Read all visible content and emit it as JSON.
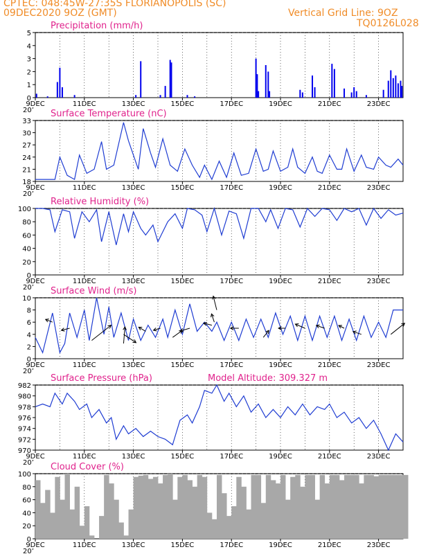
{
  "header": {
    "line1": "CPTEC:   048:45W-27:35S   FLORIANOPOLIS (SC)",
    "line2_left": "09DEC2020 9OZ (GMT)",
    "line2_right": "Vertical Grid Line: 9OZ",
    "line3_right": "TQ0126L028"
  },
  "x_tick_labels": [
    "9DEC",
    "11DEC",
    "13DEC",
    "15DEC",
    "17DEC",
    "19DEC",
    "21DEC",
    "23DEC"
  ],
  "x_stub_label": "20’",
  "colors": {
    "line": "#1e3cd2",
    "bar": "#0000ee",
    "title": "#e0228c",
    "header": "#f08c28",
    "cloud": "#a8a8a8",
    "grid": "#000000"
  },
  "chart_data": [
    {
      "type": "bar",
      "id": "precip",
      "title": "Precipitation (mm/h)",
      "ylim": [
        0,
        5
      ],
      "yticks": [
        0,
        1,
        2,
        3,
        4,
        5
      ],
      "x": [
        0.05,
        0.5,
        0.9,
        1.0,
        1.1,
        1.6,
        4.1,
        4.3,
        5.1,
        5.3,
        5.5,
        5.55,
        6.2,
        6.5,
        9.0,
        9.05,
        9.1,
        9.4,
        9.5,
        9.55,
        10.8,
        10.9,
        11.3,
        11.4,
        12.1,
        12.2,
        12.6,
        12.9,
        13.0,
        13.1,
        13.5,
        14.2,
        14.4,
        14.5,
        14.6,
        14.7,
        14.8,
        14.9,
        14.95
      ],
      "values": [
        0.3,
        0.1,
        1.2,
        2.3,
        0.8,
        0.2,
        0.2,
        2.8,
        0.2,
        0.9,
        2.9,
        2.7,
        0.2,
        0.1,
        3.0,
        1.8,
        0.5,
        2.5,
        2.0,
        0.5,
        0.6,
        0.4,
        1.7,
        0.8,
        2.6,
        2.2,
        0.7,
        0.4,
        0.8,
        0.5,
        0.2,
        0.6,
        1.3,
        2.1,
        1.5,
        1.7,
        1.1,
        1.3,
        0.9
      ]
    },
    {
      "type": "line",
      "id": "temp",
      "title": "Surface Temperature (nC)",
      "ylim": [
        18,
        33
      ],
      "yticks": [
        18,
        21,
        24,
        27,
        30,
        33
      ],
      "x": [
        0.0,
        0.3,
        0.8,
        1.0,
        1.3,
        1.6,
        1.8,
        2.1,
        2.4,
        2.7,
        2.9,
        3.2,
        3.6,
        3.8,
        4.2,
        4.4,
        4.7,
        4.9,
        5.2,
        5.5,
        5.8,
        6.1,
        6.4,
        6.7,
        6.9,
        7.2,
        7.5,
        7.8,
        8.1,
        8.4,
        8.7,
        9.0,
        9.3,
        9.5,
        9.7,
        10.0,
        10.3,
        10.5,
        10.7,
        11.0,
        11.3,
        11.5,
        11.7,
        12.0,
        12.3,
        12.5,
        12.7,
        13.0,
        13.3,
        13.5,
        13.8,
        14.0,
        14.3,
        14.5,
        14.8,
        15.0
      ],
      "values": [
        18.5,
        18.5,
        18.5,
        24.0,
        19.5,
        18.5,
        24.5,
        20.0,
        21.0,
        27.8,
        21.0,
        22.0,
        32.5,
        28.0,
        21.0,
        31.0,
        25.0,
        21.5,
        28.5,
        22.0,
        20.5,
        26.0,
        22.0,
        19.0,
        22.0,
        18.5,
        23.0,
        19.0,
        25.0,
        19.5,
        20.0,
        26.0,
        20.5,
        21.0,
        25.5,
        20.5,
        21.5,
        26.0,
        21.5,
        20.0,
        24.0,
        20.5,
        20.0,
        24.5,
        21.0,
        21.0,
        26.0,
        20.5,
        24.5,
        21.5,
        21.0,
        24.0,
        22.0,
        21.5,
        23.5,
        22.0
      ]
    },
    {
      "type": "line",
      "id": "rh",
      "title": "Relative Humidity (%)",
      "ylim": [
        0,
        100
      ],
      "yticks": [
        0,
        20,
        40,
        60,
        80,
        100
      ],
      "x": [
        0.0,
        0.3,
        0.6,
        0.8,
        1.1,
        1.4,
        1.6,
        1.9,
        2.2,
        2.5,
        2.7,
        3.0,
        3.3,
        3.6,
        3.8,
        4.0,
        4.3,
        4.5,
        4.8,
        5.0,
        5.4,
        5.7,
        6.0,
        6.2,
        6.5,
        6.8,
        7.0,
        7.3,
        7.6,
        7.9,
        8.2,
        8.5,
        8.8,
        9.1,
        9.4,
        9.6,
        9.9,
        10.2,
        10.5,
        10.8,
        11.1,
        11.4,
        11.7,
        12.0,
        12.3,
        12.6,
        12.9,
        13.2,
        13.5,
        13.8,
        14.1,
        14.4,
        14.7,
        15.0
      ],
      "values": [
        100,
        100,
        98,
        65,
        98,
        95,
        55,
        95,
        80,
        98,
        50,
        95,
        45,
        92,
        65,
        95,
        70,
        60,
        75,
        50,
        80,
        92,
        70,
        100,
        98,
        90,
        65,
        100,
        60,
        96,
        92,
        55,
        100,
        100,
        80,
        98,
        70,
        100,
        98,
        72,
        100,
        88,
        100,
        98,
        82,
        100,
        95,
        100,
        75,
        100,
        85,
        98,
        90,
        93
      ]
    },
    {
      "type": "line",
      "id": "wind",
      "title": "Surface Wind (m/s)",
      "ylim": [
        0,
        10
      ],
      "yticks": [
        0,
        2,
        4,
        6,
        8,
        10
      ],
      "x": [
        0.0,
        0.3,
        0.7,
        1.0,
        1.2,
        1.4,
        1.7,
        2.0,
        2.2,
        2.5,
        2.8,
        3.0,
        3.2,
        3.5,
        3.8,
        4.0,
        4.3,
        4.6,
        4.9,
        5.2,
        5.4,
        5.7,
        6.0,
        6.3,
        6.6,
        6.9,
        7.2,
        7.4,
        7.7,
        8.0,
        8.3,
        8.6,
        8.9,
        9.2,
        9.5,
        9.8,
        10.1,
        10.4,
        10.7,
        11.0,
        11.3,
        11.6,
        11.9,
        12.2,
        12.5,
        12.8,
        13.1,
        13.4,
        13.7,
        14.0,
        14.3,
        14.6,
        15.0
      ],
      "values": [
        3.5,
        1.0,
        7.5,
        1.0,
        2.5,
        7.5,
        3.5,
        8.0,
        3.0,
        10.0,
        4.0,
        8.5,
        3.5,
        7.5,
        3.0,
        6.5,
        3.0,
        5.5,
        3.5,
        6.5,
        3.5,
        8.0,
        4.0,
        9.0,
        4.5,
        6.0,
        4.5,
        6.0,
        3.0,
        6.0,
        3.0,
        6.5,
        3.5,
        6.5,
        3.5,
        7.5,
        4.0,
        7.0,
        3.0,
        7.0,
        3.0,
        7.0,
        3.5,
        7.0,
        3.0,
        6.5,
        3.0,
        7.0,
        3.5,
        6.0,
        3.5,
        8.0,
        8.0
      ]
    },
    {
      "type": "line",
      "id": "press",
      "title": "Surface Pressure (hPa)",
      "annotation": "Model Altitude: 309.327 m",
      "ylim": [
        970,
        982
      ],
      "yticks": [
        970,
        972,
        974,
        976,
        978,
        980,
        982
      ],
      "x": [
        0.0,
        0.3,
        0.6,
        0.8,
        1.1,
        1.3,
        1.6,
        1.8,
        2.1,
        2.3,
        2.6,
        2.9,
        3.1,
        3.3,
        3.6,
        3.8,
        4.1,
        4.4,
        4.7,
        5.0,
        5.3,
        5.6,
        5.9,
        6.2,
        6.4,
        6.7,
        6.9,
        7.2,
        7.4,
        7.7,
        7.9,
        8.2,
        8.5,
        8.8,
        9.1,
        9.4,
        9.7,
        10.0,
        10.3,
        10.6,
        10.9,
        11.2,
        11.5,
        11.8,
        12.0,
        12.3,
        12.6,
        12.9,
        13.2,
        13.5,
        13.8,
        14.1,
        14.4,
        14.7,
        15.0
      ],
      "values": [
        978.0,
        978.5,
        978.0,
        980.5,
        978.5,
        980.5,
        979.0,
        977.5,
        978.5,
        976.0,
        977.5,
        975.0,
        976.0,
        972.0,
        974.5,
        973.0,
        974.0,
        972.5,
        973.5,
        972.5,
        972.0,
        971.0,
        975.5,
        976.5,
        975.0,
        978.0,
        981.0,
        980.5,
        982.0,
        979.0,
        980.5,
        978.0,
        980.0,
        977.0,
        978.5,
        976.0,
        977.5,
        976.0,
        978.0,
        976.5,
        978.5,
        976.5,
        978.0,
        977.5,
        978.5,
        976.0,
        977.0,
        975.0,
        976.0,
        974.0,
        975.5,
        973.0,
        970.0,
        973.0,
        971.5
      ]
    },
    {
      "type": "area",
      "id": "cloud",
      "title": "Cloud Cover (%)",
      "ylim": [
        0,
        100
      ],
      "yticks": [
        0,
        20,
        40,
        60,
        80,
        100
      ],
      "x": [
        0.0,
        0.2,
        0.4,
        0.6,
        0.8,
        1.0,
        1.2,
        1.4,
        1.6,
        1.8,
        2.0,
        2.2,
        2.4,
        2.6,
        2.8,
        3.0,
        3.2,
        3.4,
        3.6,
        3.8,
        4.0,
        4.2,
        4.4,
        4.6,
        4.8,
        5.0,
        5.2,
        5.4,
        5.6,
        5.8,
        6.0,
        6.2,
        6.4,
        6.6,
        6.8,
        7.0,
        7.2,
        7.4,
        7.6,
        7.8,
        8.0,
        8.2,
        8.4,
        8.6,
        8.8,
        9.0,
        9.2,
        9.4,
        9.6,
        9.8,
        10.0,
        10.2,
        10.4,
        10.6,
        10.8,
        11.0,
        11.2,
        11.4,
        11.6,
        11.8,
        12.0,
        12.2,
        12.4,
        12.6,
        12.8,
        13.0,
        13.2,
        13.4,
        13.6,
        13.8,
        14.0,
        14.2,
        14.4,
        14.6,
        14.8,
        15.0
      ],
      "values": [
        90,
        55,
        75,
        40,
        95,
        60,
        100,
        45,
        80,
        20,
        50,
        5,
        0,
        35,
        98,
        85,
        60,
        25,
        5,
        45,
        95,
        97,
        98,
        92,
        95,
        85,
        98,
        100,
        60,
        95,
        98,
        90,
        80,
        98,
        95,
        40,
        30,
        98,
        70,
        35,
        50,
        95,
        80,
        45,
        98,
        98,
        55,
        98,
        90,
        85,
        98,
        60,
        95,
        98,
        80,
        98,
        98,
        60,
        98,
        85,
        98,
        98,
        90,
        98,
        98,
        98,
        85,
        98,
        98,
        96,
        98,
        98,
        98,
        98,
        98,
        98
      ]
    }
  ],
  "wind_arrows": [
    {
      "x": 0.7,
      "y": 6.0,
      "dx": -10,
      "dy": -4
    },
    {
      "x": 1.4,
      "y": 5.0,
      "dx": -12,
      "dy": 3
    },
    {
      "x": 2.3,
      "y": 3.0,
      "dx": 28,
      "dy": -22
    },
    {
      "x": 3.6,
      "y": 2.5,
      "dx": 2,
      "dy": -24
    },
    {
      "x": 3.6,
      "y": 4.0,
      "dx": 18,
      "dy": 12
    },
    {
      "x": 4.5,
      "y": 4.5,
      "dx": -10,
      "dy": -6
    },
    {
      "x": 5.1,
      "y": 5.0,
      "dx": -10,
      "dy": 3
    },
    {
      "x": 5.6,
      "y": 3.5,
      "dx": 14,
      "dy": -10
    },
    {
      "x": 6.3,
      "y": 5.0,
      "dx": -14,
      "dy": 4
    },
    {
      "x": 7.2,
      "y": 5.5,
      "dx": -12,
      "dy": -3
    },
    {
      "x": 7.3,
      "y": 6.0,
      "dx": -4,
      "dy": -12
    },
    {
      "x": 7.4,
      "y": 8.0,
      "dx": -5,
      "dy": -20
    },
    {
      "x": 8.3,
      "y": 5.0,
      "dx": -12,
      "dy": 0
    },
    {
      "x": 9.3,
      "y": 3.5,
      "dx": 8,
      "dy": -10
    },
    {
      "x": 10.2,
      "y": 5.0,
      "dx": -10,
      "dy": 0
    },
    {
      "x": 11.0,
      "y": 5.0,
      "dx": -14,
      "dy": -6
    },
    {
      "x": 11.8,
      "y": 5.0,
      "dx": -12,
      "dy": -4
    },
    {
      "x": 12.6,
      "y": 5.0,
      "dx": -8,
      "dy": -4
    },
    {
      "x": 13.3,
      "y": 4.0,
      "dx": -12,
      "dy": -4
    },
    {
      "x": 14.5,
      "y": 4.0,
      "dx": 20,
      "dy": -16
    }
  ]
}
